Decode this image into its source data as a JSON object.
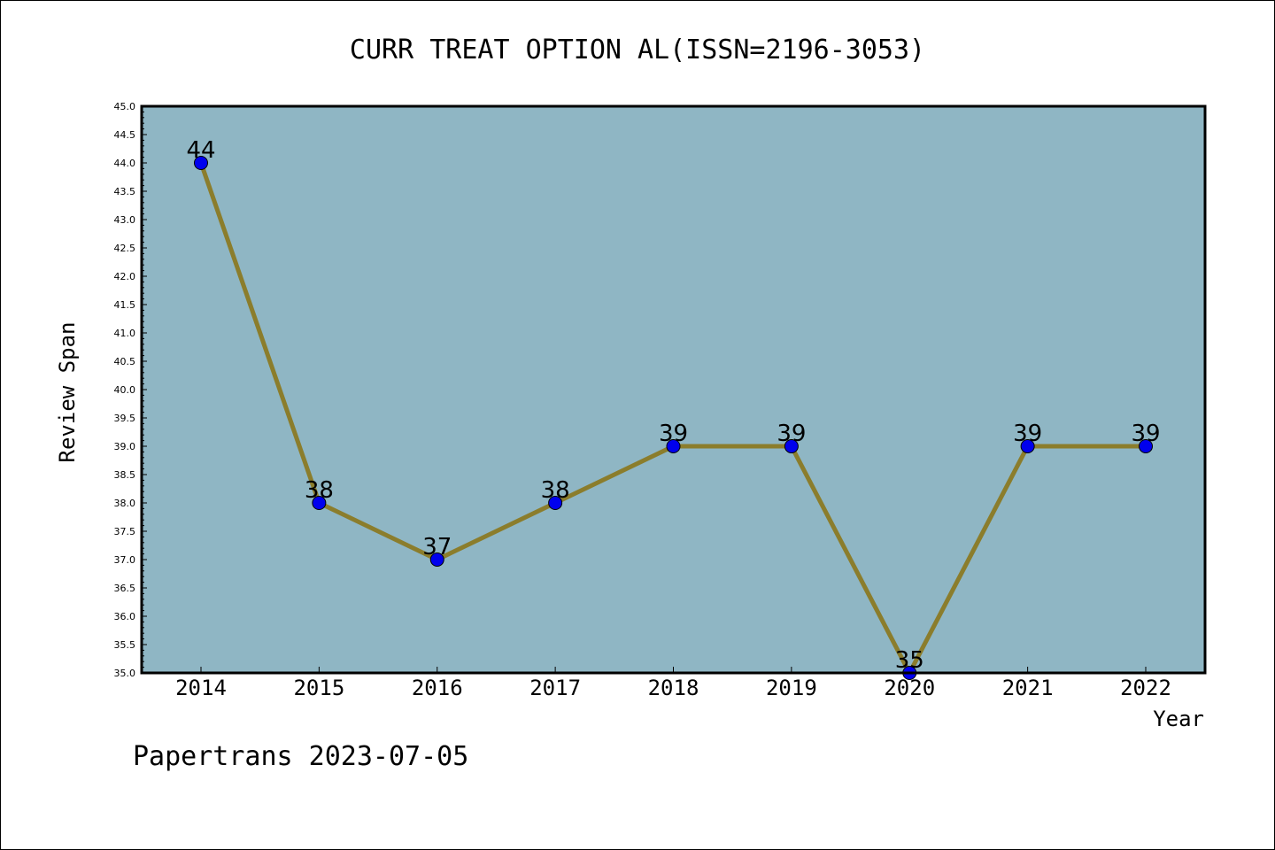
{
  "chart_data": {
    "type": "line",
    "title": "CURR TREAT OPTION AL(ISSN=2196-3053)",
    "xlabel": "Year",
    "ylabel": "Review Span",
    "categories": [
      "2014",
      "2015",
      "2016",
      "2017",
      "2018",
      "2019",
      "2020",
      "2021",
      "2022"
    ],
    "values": [
      44,
      38,
      37,
      38,
      39,
      39,
      35,
      39,
      39
    ],
    "ylim": [
      35.0,
      45.0
    ],
    "ytick_step": 0.5,
    "grid": false,
    "legend": "none",
    "colors": {
      "plot_background": "#8fb6c4",
      "line": "#8b7d2c",
      "marker": "#0000ee"
    }
  },
  "footer": {
    "watermark": "Papertrans 2023-07-05"
  }
}
